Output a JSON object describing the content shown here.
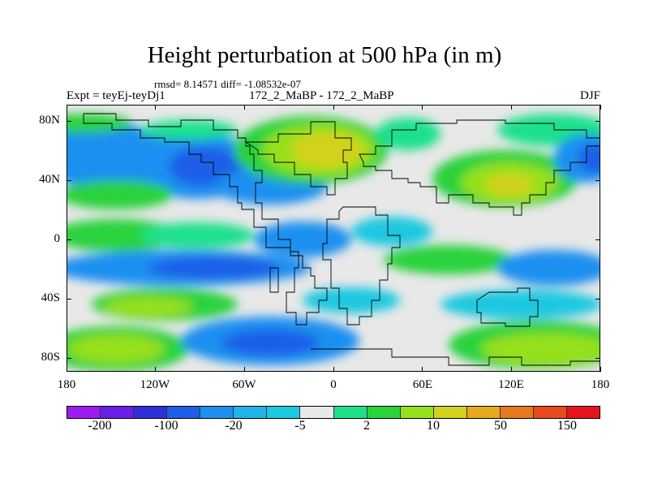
{
  "title": "Height perturbation at 500 hPa (in m)",
  "stats": "rmsd= 8.14571 diff= -1.08532e-07",
  "experiment": "Expt = teyEj-teyDj1",
  "period": "172_2_MaBP - 172_2_MaBP",
  "season": "DJF",
  "y_ticks": [
    "80N",
    "40N",
    "0",
    "40S",
    "80S"
  ],
  "x_ticks": [
    "180",
    "120W",
    "60W",
    "0",
    "60E",
    "120E",
    "180"
  ],
  "colorbar": {
    "colors": [
      "#9c1cf0",
      "#6a1fe6",
      "#3030d8",
      "#1e5ee8",
      "#1e90f0",
      "#20b4e8",
      "#1ec8e0",
      "#e8e8e8",
      "#1ee08c",
      "#2ad23c",
      "#96e01e",
      "#d2d21e",
      "#e6aa1e",
      "#e6781e",
      "#e64a1e",
      "#e6141e"
    ],
    "labels": [
      "-200",
      "-100",
      "-20",
      "-5",
      "2",
      "10",
      "50",
      "150"
    ]
  }
}
